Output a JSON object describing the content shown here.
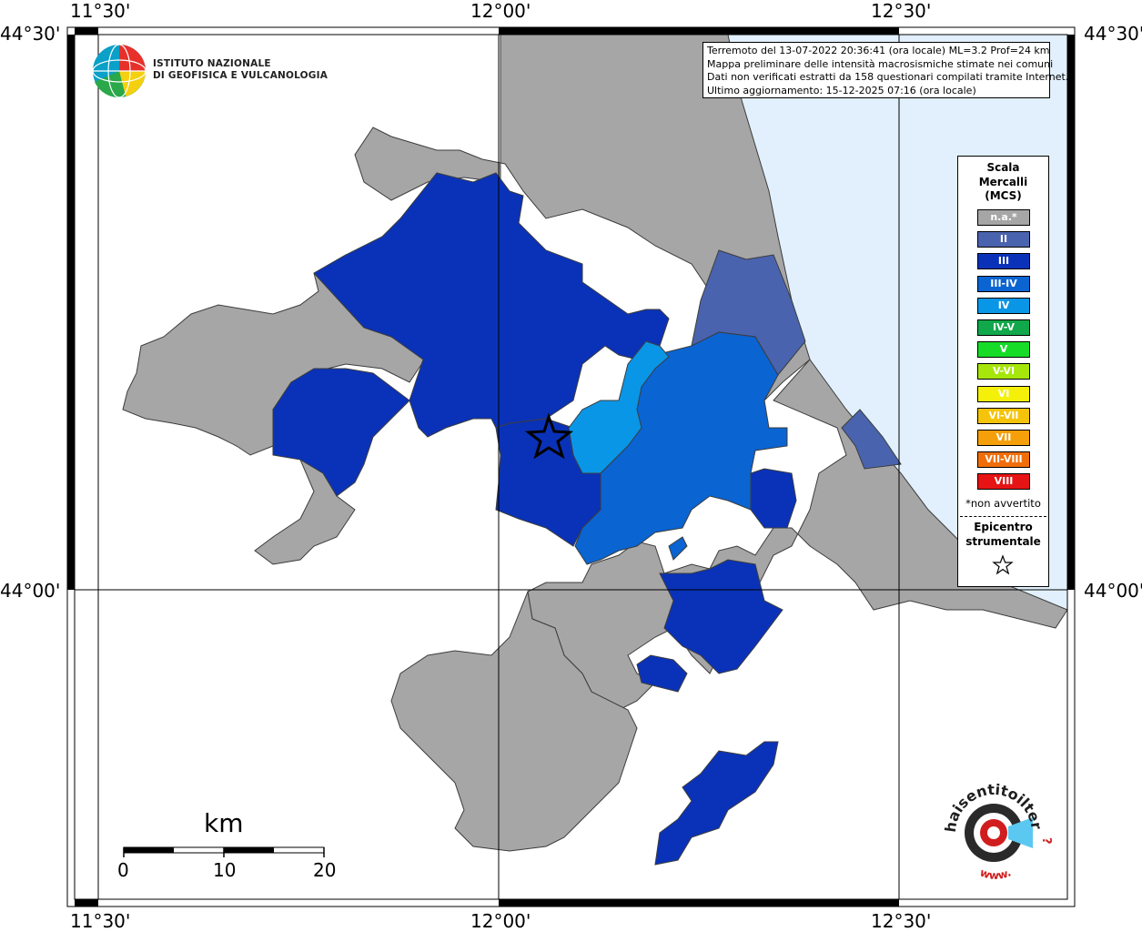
{
  "map": {
    "coords": {
      "top": [
        "11°30'",
        "12°00'",
        "12°30'"
      ],
      "bottom": [
        "11°30'",
        "12°00'",
        "12°30'"
      ],
      "left": [
        "44°30'",
        "44°00'"
      ],
      "right": [
        "44°30'",
        "44°00'"
      ]
    }
  },
  "header": {
    "org_line1": "ISTITUTO NAZIONALE",
    "org_line2": "DI GEOFISICA E VULCANOLOGIA"
  },
  "info": {
    "line1": "Terremoto del 13-07-2022 20:36:41 (ora locale) ML=3.2 Prof=24 km",
    "line2": "Mappa preliminare delle intensità macrosismiche stimate nei comuni",
    "line3": "Dati non verificati estratti da 158 questionari compilati tramite Internet.",
    "line4": "Ultimo aggiornamento: 15-12-2025 07:16 (ora locale)"
  },
  "legend": {
    "title_line1": "Scala",
    "title_line2": "Mercalli",
    "title_line3": "(MCS)",
    "items": [
      {
        "label": "n.a.*",
        "color": "#a6a6a6"
      },
      {
        "label": "II",
        "color": "#4a63ae"
      },
      {
        "label": "III",
        "color": "#0a32b8"
      },
      {
        "label": "III-IV",
        "color": "#0a64d2"
      },
      {
        "label": "IV",
        "color": "#0a96e6"
      },
      {
        "label": "IV-V",
        "color": "#10a84a"
      },
      {
        "label": "V",
        "color": "#16dc28"
      },
      {
        "label": "V-VI",
        "color": "#a6e60a"
      },
      {
        "label": "VI",
        "color": "#f5f00a"
      },
      {
        "label": "VI-VII",
        "color": "#f5c30a"
      },
      {
        "label": "VII",
        "color": "#f5a00a"
      },
      {
        "label": "VII-VIII",
        "color": "#f06e0a"
      },
      {
        "label": "VIII",
        "color": "#e61414"
      }
    ],
    "note": "*non avvertito",
    "epicenter_line1": "Epicentro",
    "epicenter_line2": "strumentale"
  },
  "scale": {
    "unit": "km",
    "ticks": [
      "0",
      "10",
      "20"
    ]
  },
  "watermark": {
    "text_main": "haisentitoilterremoto",
    "text_tld": ".it",
    "text_www": "www."
  },
  "colors": {
    "sea": "#e1f0fc",
    "na": "#a6a6a6",
    "intensity_II": "#4a63ae",
    "intensity_III": "#0a32b8",
    "intensity_III_IV": "#0a64d2",
    "intensity_IV": "#0a96e6",
    "border": "#3c3c3c"
  }
}
